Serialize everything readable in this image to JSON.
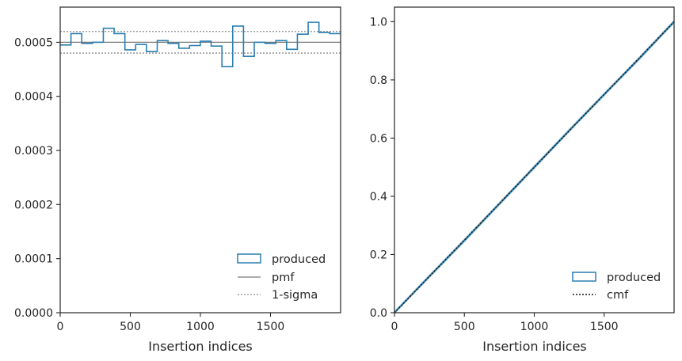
{
  "chart_data": [
    {
      "type": "histogram-step",
      "xlabel": "Insertion indices",
      "ylabel": "",
      "xlim": [
        0,
        2000
      ],
      "ylim": [
        0,
        0.000565
      ],
      "x_ticks": [
        "0",
        "500",
        "1000",
        "1500"
      ],
      "x_tick_values": [
        0,
        500,
        1000,
        1500
      ],
      "y_ticks": [
        "0.0000",
        "0.0001",
        "0.0002",
        "0.0003",
        "0.0004",
        "0.0005"
      ],
      "y_tick_values": [
        0,
        0.0001,
        0.0002,
        0.0003,
        0.0004,
        0.0005
      ],
      "bin_width": 76.9,
      "bin_values": [
        0.000495,
        0.000516,
        0.000498,
        0.0005,
        0.000526,
        0.000516,
        0.000486,
        0.000496,
        0.000483,
        0.000503,
        0.000498,
        0.000489,
        0.000494,
        0.000502,
        0.000493,
        0.000455,
        0.00053,
        0.000474,
        0.0005,
        0.000498,
        0.000503,
        0.000487,
        0.000515,
        0.000537,
        0.000518,
        0.000516
      ],
      "pmf": 0.0005,
      "sigma_band": [
        0.00048,
        0.00052
      ],
      "legend": {
        "position": "lower-right",
        "items": [
          "produced",
          "pmf",
          "1-sigma"
        ]
      },
      "colors": {
        "produced": "#2a7fb0",
        "pmf": "#7a7a7a",
        "sigma": "#8a8a8a"
      }
    },
    {
      "type": "line",
      "xlabel": "Insertion indices",
      "ylabel": "",
      "xlim": [
        0,
        2000
      ],
      "ylim": [
        0,
        1.05
      ],
      "x_ticks": [
        "0",
        "500",
        "1000",
        "1500"
      ],
      "x_tick_values": [
        0,
        500,
        1000,
        1500
      ],
      "y_ticks": [
        "0.0",
        "0.2",
        "0.4",
        "0.6",
        "0.8",
        "1.0"
      ],
      "y_tick_values": [
        0,
        0.2,
        0.4,
        0.6,
        0.8,
        1.0
      ],
      "series": [
        {
          "name": "produced",
          "x": [
            0,
            250,
            500,
            750,
            1000,
            1250,
            1500,
            1750,
            2000
          ],
          "y": [
            0,
            0.125,
            0.248,
            0.374,
            0.5,
            0.626,
            0.75,
            0.873,
            1.0
          ]
        },
        {
          "name": "cmf",
          "x": [
            0,
            2000
          ],
          "y": [
            0,
            1.0
          ]
        }
      ],
      "legend": {
        "position": "lower-right",
        "items": [
          "produced",
          "cmf"
        ]
      },
      "colors": {
        "produced": "#2a7fb0",
        "band": "#c9dde9",
        "cmf": "#1a1a1a"
      }
    }
  ]
}
